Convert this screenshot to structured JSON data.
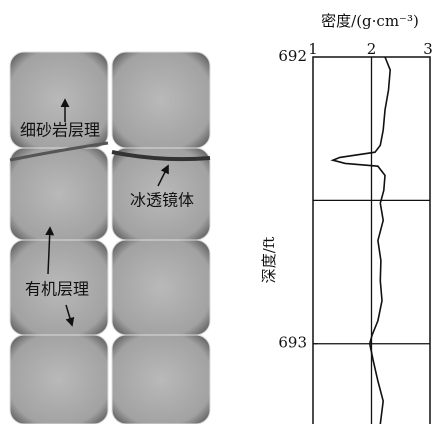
{
  "image_labels": [
    "细砂岩层理",
    "冰透镜体",
    "有机层理"
  ],
  "chart_data": {
    "type": "line",
    "title": "密度/(g·cm⁻³)",
    "y_label": "深度/ft",
    "depth": [
      692.0,
      692.045,
      692.115,
      692.185,
      692.255,
      692.308,
      692.332,
      692.35,
      692.36,
      692.371,
      692.381,
      692.413,
      692.465,
      692.51,
      692.57,
      692.64,
      692.71,
      692.78,
      692.85,
      692.92,
      692.97,
      693.0,
      693.06,
      693.13,
      693.2,
      693.28
    ],
    "series": [
      {
        "color": "#111111",
        "values": [
          2.23,
          2.32,
          2.29,
          2.23,
          2.2,
          2.15,
          2.06,
          1.46,
          1.34,
          1.55,
          2.11,
          2.23,
          2.21,
          2.15,
          2.2,
          2.11,
          2.16,
          2.15,
          2.18,
          2.11,
          2.01,
          1.97,
          2.03,
          2.11,
          2.2,
          2.15
        ]
      }
    ],
    "xlim": [
      1,
      3
    ],
    "xticks": [
      1,
      2,
      3
    ],
    "ylim": [
      692,
      693.28
    ],
    "yticks": [
      692,
      693
    ],
    "inverted_y": true,
    "vgrid": [
      2
    ],
    "hgrid": [
      692.5,
      693
    ]
  }
}
